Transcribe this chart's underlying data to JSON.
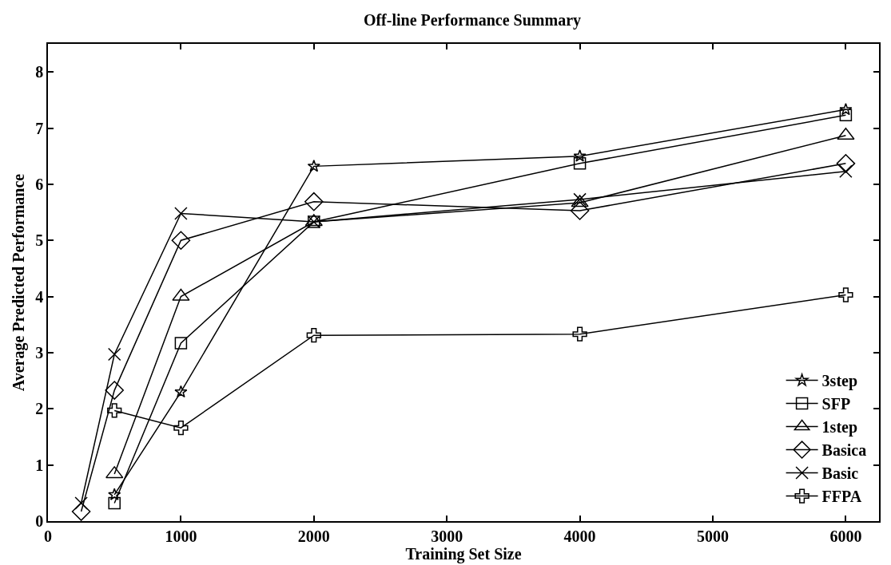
{
  "chart_data": {
    "type": "line",
    "title": "Off-line Performance Summary",
    "xlabel": "Training Set Size",
    "ylabel": "Average Predicted Performance",
    "xlim": [
      0,
      6250
    ],
    "xticks": [
      0,
      1000,
      2000,
      3000,
      4000,
      5000,
      6000
    ],
    "ylim": [
      0,
      8.5
    ],
    "yticks": [
      0,
      1,
      2,
      3,
      4,
      5,
      6,
      7,
      8
    ],
    "legend": "bottom right",
    "line_style": "solid",
    "series": [
      {
        "name": "3step",
        "color": "#000000",
        "marker": "star",
        "x": [
          500,
          1000,
          2000,
          4000,
          6000
        ],
        "values": [
          0.47,
          2.3,
          6.32,
          6.5,
          7.33
        ]
      },
      {
        "name": "SFP",
        "color": "#000000",
        "marker": "square",
        "x": [
          500,
          1000,
          2000,
          4000,
          6000
        ],
        "values": [
          0.32,
          3.17,
          5.33,
          6.37,
          7.23
        ]
      },
      {
        "name": "1step",
        "color": "#000000",
        "marker": "triangle",
        "x": [
          500,
          1000,
          2000,
          4000,
          6000
        ],
        "values": [
          0.84,
          4.0,
          5.33,
          5.67,
          6.87
        ]
      },
      {
        "name": "Basica",
        "color": "#000000",
        "marker": "diamond",
        "x": [
          250,
          500,
          1000,
          2000,
          4000,
          6000
        ],
        "values": [
          0.17,
          2.33,
          5.0,
          5.69,
          5.53,
          6.37
        ]
      },
      {
        "name": "Basic",
        "color": "#000000",
        "marker": "x",
        "x": [
          250,
          500,
          1000,
          2000,
          4000,
          6000
        ],
        "values": [
          0.32,
          2.97,
          5.48,
          5.33,
          5.73,
          6.23
        ]
      },
      {
        "name": "FFPA",
        "color": "#000000",
        "marker": "cross",
        "x": [
          500,
          1000,
          2000,
          4000,
          6000
        ],
        "values": [
          1.97,
          1.66,
          3.31,
          3.33,
          4.03
        ]
      }
    ]
  }
}
